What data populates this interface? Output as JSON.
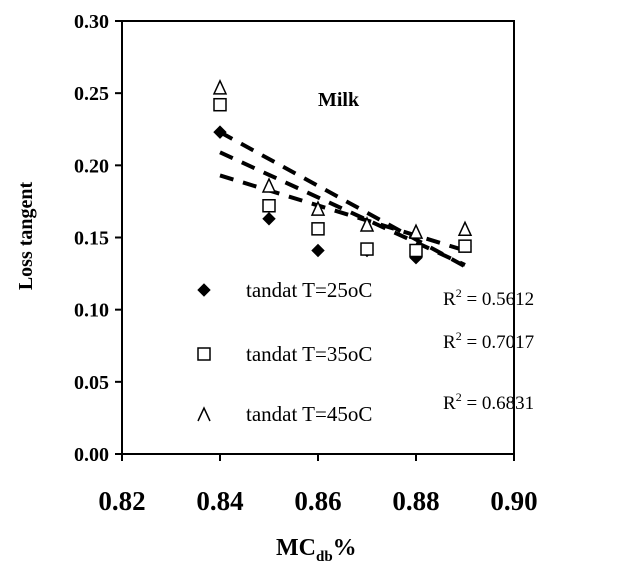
{
  "chart_data": {
    "type": "scatter",
    "title": "",
    "plot_label": "Milk",
    "xlabel": "MC",
    "xlabel_sub": "db",
    "xlabel_suffix": "%",
    "ylabel": "Loss tangent",
    "xlim": [
      0.82,
      0.9
    ],
    "ylim": [
      0.0,
      0.3
    ],
    "xticks": [
      "0.82",
      "0.84",
      "0.86",
      "0.88",
      "0.90"
    ],
    "yticks": [
      "0.00",
      "0.05",
      "0.10",
      "0.15",
      "0.20",
      "0.25",
      "0.30"
    ],
    "grid": false,
    "legend_position": "lower-left",
    "series": [
      {
        "name": "tandat T=25oC",
        "marker": "diamond",
        "x": [
          0.84,
          0.85,
          0.86,
          0.87,
          0.88,
          0.89
        ],
        "y": [
          0.223,
          0.163,
          0.141,
          0.141,
          0.136,
          0.144
        ],
        "trend_y": [
          0.223,
          0.13
        ],
        "r2_label": "R",
        "r2_value": " = 0.5612"
      },
      {
        "name": "tandat T=35oC",
        "marker": "square",
        "x": [
          0.84,
          0.85,
          0.86,
          0.87,
          0.88,
          0.89
        ],
        "y": [
          0.242,
          0.172,
          0.156,
          0.142,
          0.141,
          0.144
        ],
        "trend_y": [
          0.209,
          0.131
        ],
        "r2_label": "R",
        "r2_value": " = 0.7017"
      },
      {
        "name": "tandat T=45oC",
        "marker": "triangle",
        "x": [
          0.84,
          0.85,
          0.86,
          0.87,
          0.88,
          0.89
        ],
        "y": [
          0.253,
          0.185,
          0.169,
          0.158,
          0.153,
          0.155
        ],
        "trend_y": [
          0.193,
          0.141
        ],
        "r2_label": "R",
        "r2_value": " = 0.6831"
      }
    ]
  }
}
